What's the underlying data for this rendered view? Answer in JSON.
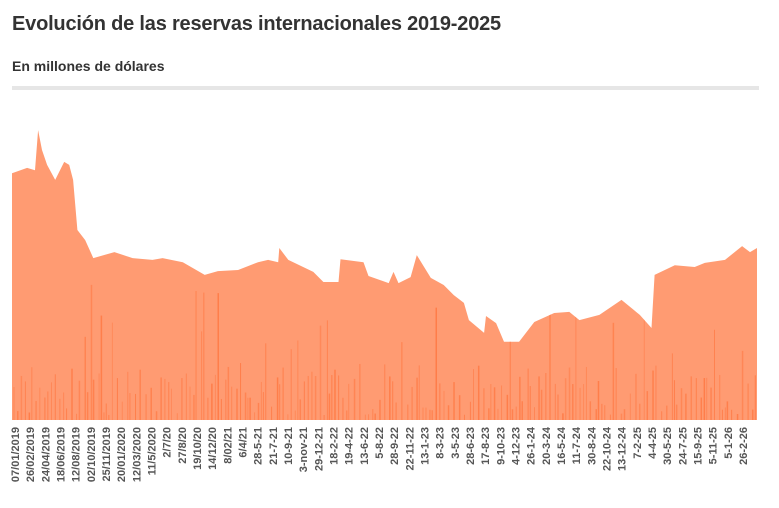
{
  "header": {
    "title": "Evolución de las reservas internacionales 2019-2025",
    "subtitle": "En millones de dólares"
  },
  "chart_data": {
    "type": "area",
    "title": "Evolución de las reservas internacionales 2019-2025",
    "ylabel": "",
    "xlabel": "",
    "units": "En millones de dólares",
    "ylim": [
      0,
      78000
    ],
    "grid": false,
    "legend": "none",
    "color": "#FF9B72",
    "accent_color": "#FF7A45",
    "x_tick_labels": [
      "07/01/2019",
      "26/02/2019",
      "24/04/2019",
      "18/06/2019",
      "12/08/2019",
      "02/10/2019",
      "25/11/2019",
      "20/01/2020",
      "12/03/2020",
      "11/5/2020",
      "2/7/20",
      "27/8/20",
      "19/10/20",
      "14/12/20",
      "8/02/21",
      "6/4/21",
      "28-5-21",
      "21-7-21",
      "10-9-21",
      "3-nov-21",
      "29-12-21",
      "18-2-22",
      "19-4-22",
      "13-6-22",
      "5-8-22",
      "28-9-22",
      "22-11-22",
      "13-1-23",
      "8-3-23",
      "3-5-23",
      "28-6-23",
      "17-8-23",
      "9-10-23",
      "4-12-23",
      "26-1-24",
      "20-3-24",
      "16-5-24",
      "11-7-24",
      "30-8-24",
      "22-10-24",
      "13-12-24",
      "7-2-25",
      "4-4-25",
      "30-5-25",
      "24-7-25",
      "15-9-25",
      "5-11-25",
      "5-1-26",
      "26-2-26"
    ],
    "series": [
      {
        "points": [
          [
            "2019-01-07",
            66000
          ],
          [
            "2019-03-02",
            67400
          ],
          [
            "2019-03-30",
            66800
          ],
          [
            "2019-04-10",
            77500
          ],
          [
            "2019-04-24",
            72200
          ],
          [
            "2019-05-12",
            68200
          ],
          [
            "2019-06-10",
            64200
          ],
          [
            "2019-07-12",
            69000
          ],
          [
            "2019-07-30",
            68200
          ],
          [
            "2019-08-13",
            64200
          ],
          [
            "2019-08-28",
            50800
          ],
          [
            "2019-09-25",
            48100
          ],
          [
            "2019-10-24",
            43300
          ],
          [
            "2020-01-07",
            44900
          ],
          [
            "2020-03-12",
            43300
          ],
          [
            "2020-05-22",
            42800
          ],
          [
            "2020-06-27",
            43300
          ],
          [
            "2020-09-07",
            42200
          ],
          [
            "2020-11-24",
            38800
          ],
          [
            "2021-01-10",
            39800
          ],
          [
            "2021-03-23",
            40100
          ],
          [
            "2021-06-02",
            42200
          ],
          [
            "2021-07-08",
            42800
          ],
          [
            "2021-08-13",
            42200
          ],
          [
            "2021-08-17",
            46000
          ],
          [
            "2021-09-18",
            42800
          ],
          [
            "2021-12-16",
            39600
          ],
          [
            "2022-01-21",
            36900
          ],
          [
            "2022-03-16",
            36900
          ],
          [
            "2022-03-23",
            43000
          ],
          [
            "2022-06-13",
            42200
          ],
          [
            "2022-07-01",
            38500
          ],
          [
            "2022-09-11",
            36600
          ],
          [
            "2022-09-28",
            39600
          ],
          [
            "2022-10-16",
            36600
          ],
          [
            "2022-11-28",
            38200
          ],
          [
            "2022-12-20",
            44100
          ],
          [
            "2023-02-08",
            38000
          ],
          [
            "2023-03-26",
            36100
          ],
          [
            "2023-05-01",
            33400
          ],
          [
            "2023-06-06",
            31300
          ],
          [
            "2023-06-24",
            26700
          ],
          [
            "2023-08-17",
            23300
          ],
          [
            "2023-08-24",
            27800
          ],
          [
            "2023-09-29",
            25900
          ],
          [
            "2023-10-27",
            20900
          ],
          [
            "2023-12-20",
            20900
          ],
          [
            "2024-02-12",
            26200
          ],
          [
            "2024-04-23",
            28600
          ],
          [
            "2024-06-16",
            28900
          ],
          [
            "2024-07-22",
            26700
          ],
          [
            "2024-10-01",
            28100
          ],
          [
            "2024-12-19",
            32100
          ],
          [
            "2025-02-22",
            28100
          ],
          [
            "2025-04-05",
            24600
          ],
          [
            "2025-04-16",
            38800
          ],
          [
            "2025-06-27",
            41400
          ],
          [
            "2025-09-06",
            40900
          ],
          [
            "2025-10-12",
            42000
          ],
          [
            "2025-12-23",
            42800
          ],
          [
            "2026-02-22",
            46500
          ],
          [
            "2026-03-22",
            44900
          ],
          [
            "2026-04-16",
            46000
          ]
        ]
      }
    ]
  }
}
